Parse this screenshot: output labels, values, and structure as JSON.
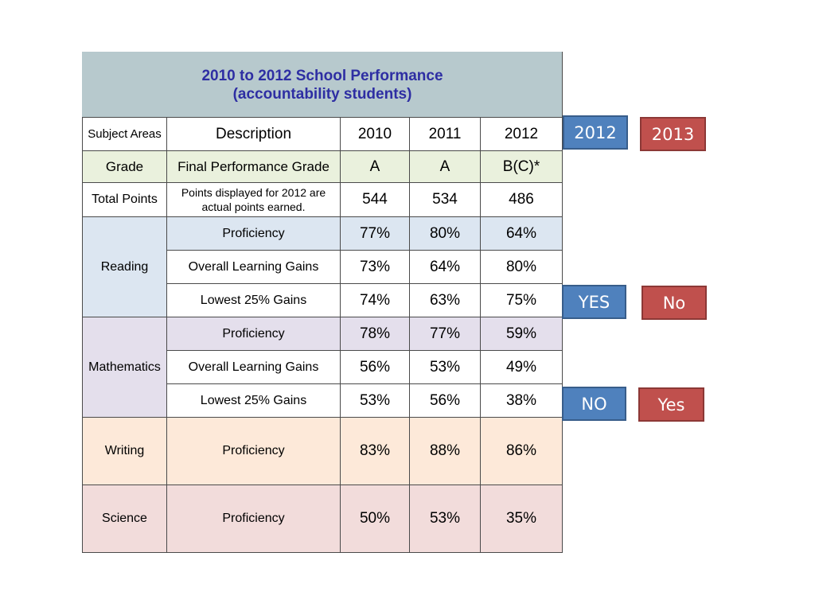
{
  "table": {
    "title_line1": "2010 to 2012 School Performance",
    "title_line2": "(accountability students)",
    "header": {
      "subject": "Subject Areas",
      "description": "Description",
      "y2010": "2010",
      "y2011": "2011",
      "y2012": "2012"
    },
    "grade": {
      "subject": "Grade",
      "description": "Final Performance Grade",
      "values": [
        "A",
        "A",
        "B(C)*"
      ]
    },
    "total": {
      "subject": "Total Points",
      "description": "Points displayed for 2012 are actual points earned.",
      "values": [
        "544",
        "534",
        "486"
      ]
    },
    "reading": {
      "subject": "Reading",
      "rows": [
        {
          "description": "Proficiency",
          "values": [
            "77%",
            "80%",
            "64%"
          ]
        },
        {
          "description": "Overall Learning Gains",
          "values": [
            "73%",
            "64%",
            "80%"
          ]
        },
        {
          "description": "Lowest 25% Gains",
          "values": [
            "74%",
            "63%",
            "75%"
          ]
        }
      ]
    },
    "math": {
      "subject": "Mathematics",
      "rows": [
        {
          "description": "Proficiency",
          "values": [
            "78%",
            "77%",
            "59%"
          ]
        },
        {
          "description": "Overall Learning Gains",
          "values": [
            "56%",
            "53%",
            "49%"
          ]
        },
        {
          "description": "Lowest 25% Gains",
          "values": [
            "53%",
            "56%",
            "38%"
          ]
        }
      ]
    },
    "writing": {
      "subject": "Writing",
      "description": "Proficiency",
      "values": [
        "83%",
        "88%",
        "86%"
      ]
    },
    "science": {
      "subject": "Science",
      "description": "Proficiency",
      "values": [
        "50%",
        "53%",
        "35%"
      ]
    }
  },
  "buttons": {
    "year_2012": "2012",
    "year_2013": "2013",
    "reading_yes": "YES",
    "reading_no": "No",
    "math_no": "NO",
    "math_yes": "Yes"
  },
  "colors": {
    "blue_button": "#4f81bd",
    "red_button": "#c0504d",
    "title_bg": "#b7c9cd",
    "title_text": "#2e2ea3"
  }
}
